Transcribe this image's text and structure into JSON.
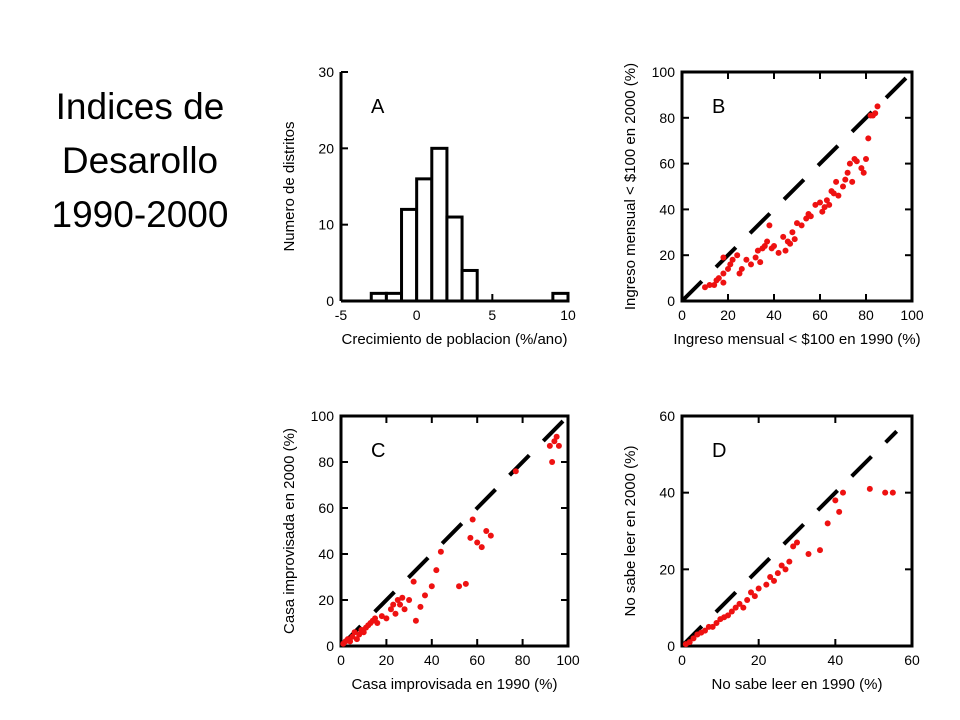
{
  "title_lines": [
    "Indices de",
    "Desarollo",
    "1990-2000"
  ],
  "colors": {
    "points": "#ee1111",
    "diagonal": "#000000",
    "axes": "#000000"
  },
  "chart_data": [
    {
      "id": "A",
      "type": "bar",
      "panel_label": "A",
      "xlabel": "Crecimiento de poblacion (%/ano)",
      "ylabel": "Numero de distritos",
      "xlim": [
        -5,
        10
      ],
      "ylim": [
        0,
        30
      ],
      "xticks": [
        -5,
        0,
        5,
        10
      ],
      "yticks": [
        0,
        10,
        20,
        30
      ],
      "bin_width": 1,
      "bins": [
        {
          "x0": -3,
          "count": 1
        },
        {
          "x0": -2,
          "count": 1
        },
        {
          "x0": -1,
          "count": 12
        },
        {
          "x0": 0,
          "count": 16
        },
        {
          "x0": 1,
          "count": 20
        },
        {
          "x0": 2,
          "count": 11
        },
        {
          "x0": 3,
          "count": 4
        },
        {
          "x0": 9,
          "count": 1
        }
      ]
    },
    {
      "id": "B",
      "type": "scatter",
      "panel_label": "B",
      "xlabel": "Ingreso mensual < $100 en 1990 (%)",
      "ylabel": "Ingreso mensual < $100 en 2000 (%)",
      "xlim": [
        0,
        100
      ],
      "ylim": [
        0,
        100
      ],
      "xticks": [
        0,
        20,
        40,
        60,
        80,
        100
      ],
      "yticks": [
        0,
        20,
        40,
        60,
        80,
        100
      ],
      "diagonal": [
        0,
        100
      ],
      "points": [
        [
          10,
          6
        ],
        [
          12,
          7
        ],
        [
          14,
          7
        ],
        [
          15,
          9
        ],
        [
          16,
          10
        ],
        [
          18,
          8
        ],
        [
          18,
          12
        ],
        [
          18,
          19
        ],
        [
          20,
          14
        ],
        [
          21,
          16
        ],
        [
          22,
          18
        ],
        [
          24,
          20
        ],
        [
          25,
          12
        ],
        [
          26,
          14
        ],
        [
          28,
          18
        ],
        [
          30,
          16
        ],
        [
          32,
          19
        ],
        [
          33,
          22
        ],
        [
          34,
          17
        ],
        [
          35,
          23
        ],
        [
          36,
          24
        ],
        [
          37,
          26
        ],
        [
          38,
          33
        ],
        [
          39,
          23
        ],
        [
          40,
          24
        ],
        [
          42,
          21
        ],
        [
          44,
          28
        ],
        [
          45,
          22
        ],
        [
          46,
          26
        ],
        [
          47,
          25
        ],
        [
          48,
          30
        ],
        [
          49,
          27
        ],
        [
          50,
          34
        ],
        [
          52,
          33
        ],
        [
          54,
          36
        ],
        [
          55,
          38
        ],
        [
          56,
          37
        ],
        [
          58,
          42
        ],
        [
          60,
          43
        ],
        [
          61,
          39
        ],
        [
          62,
          41
        ],
        [
          63,
          44
        ],
        [
          64,
          42
        ],
        [
          65,
          48
        ],
        [
          66,
          47
        ],
        [
          67,
          52
        ],
        [
          68,
          46
        ],
        [
          70,
          50
        ],
        [
          71,
          53
        ],
        [
          72,
          56
        ],
        [
          73,
          60
        ],
        [
          74,
          52
        ],
        [
          75,
          62
        ],
        [
          76,
          61
        ],
        [
          78,
          58
        ],
        [
          79,
          56
        ],
        [
          80,
          62
        ],
        [
          81,
          71
        ],
        [
          82,
          81
        ],
        [
          83,
          81
        ],
        [
          84,
          82
        ],
        [
          85,
          85
        ]
      ]
    },
    {
      "id": "C",
      "type": "scatter",
      "panel_label": "C",
      "xlabel": "Casa improvisada en 1990 (%)",
      "ylabel": "Casa improvisada en 2000 (%)",
      "xlim": [
        0,
        100
      ],
      "ylim": [
        0,
        100
      ],
      "xticks": [
        0,
        20,
        40,
        60,
        80,
        100
      ],
      "yticks": [
        0,
        20,
        40,
        60,
        80,
        100
      ],
      "diagonal": [
        0,
        100
      ],
      "points": [
        [
          1,
          1
        ],
        [
          2,
          2
        ],
        [
          3,
          3
        ],
        [
          4,
          2
        ],
        [
          5,
          4
        ],
        [
          6,
          6
        ],
        [
          7,
          3
        ],
        [
          8,
          5
        ],
        [
          9,
          7
        ],
        [
          10,
          6
        ],
        [
          11,
          8
        ],
        [
          12,
          9
        ],
        [
          13,
          10
        ],
        [
          14,
          11
        ],
        [
          15,
          12
        ],
        [
          16,
          10
        ],
        [
          18,
          13
        ],
        [
          20,
          12
        ],
        [
          22,
          16
        ],
        [
          23,
          18
        ],
        [
          24,
          14
        ],
        [
          25,
          20
        ],
        [
          26,
          18
        ],
        [
          27,
          21
        ],
        [
          28,
          16
        ],
        [
          30,
          20
        ],
        [
          32,
          28
        ],
        [
          33,
          11
        ],
        [
          35,
          17
        ],
        [
          37,
          22
        ],
        [
          40,
          26
        ],
        [
          42,
          33
        ],
        [
          44,
          41
        ],
        [
          52,
          26
        ],
        [
          55,
          27
        ],
        [
          57,
          47
        ],
        [
          58,
          55
        ],
        [
          60,
          45
        ],
        [
          62,
          43
        ],
        [
          64,
          50
        ],
        [
          66,
          48
        ],
        [
          77,
          76
        ],
        [
          92,
          87
        ],
        [
          93,
          80
        ],
        [
          94,
          89
        ],
        [
          95,
          91
        ],
        [
          96,
          87
        ]
      ]
    },
    {
      "id": "D",
      "type": "scatter",
      "panel_label": "D",
      "xlabel": "No sabe leer en 1990 (%)",
      "ylabel": "No sabe leer en 2000 (%)",
      "xlim": [
        0,
        60
      ],
      "ylim": [
        0,
        60
      ],
      "xticks": [
        0,
        20,
        40,
        60
      ],
      "yticks": [
        0,
        20,
        40,
        60
      ],
      "diagonal": [
        0,
        56
      ],
      "points": [
        [
          1,
          0.5
        ],
        [
          2,
          1
        ],
        [
          3,
          2
        ],
        [
          4,
          3
        ],
        [
          5,
          3.5
        ],
        [
          6,
          4
        ],
        [
          7,
          5
        ],
        [
          8,
          5
        ],
        [
          9,
          6
        ],
        [
          10,
          7
        ],
        [
          11,
          7.5
        ],
        [
          12,
          8
        ],
        [
          13,
          9
        ],
        [
          14,
          10
        ],
        [
          15,
          11
        ],
        [
          16,
          10
        ],
        [
          17,
          12
        ],
        [
          18,
          14
        ],
        [
          19,
          13
        ],
        [
          20,
          15
        ],
        [
          22,
          16
        ],
        [
          23,
          18
        ],
        [
          24,
          17
        ],
        [
          25,
          19
        ],
        [
          26,
          21
        ],
        [
          27,
          20
        ],
        [
          28,
          22
        ],
        [
          29,
          26
        ],
        [
          30,
          27
        ],
        [
          33,
          24
        ],
        [
          36,
          25
        ],
        [
          38,
          32
        ],
        [
          40,
          38
        ],
        [
          41,
          35
        ],
        [
          42,
          40
        ],
        [
          49,
          41
        ],
        [
          53,
          40
        ],
        [
          55,
          40
        ]
      ]
    }
  ]
}
